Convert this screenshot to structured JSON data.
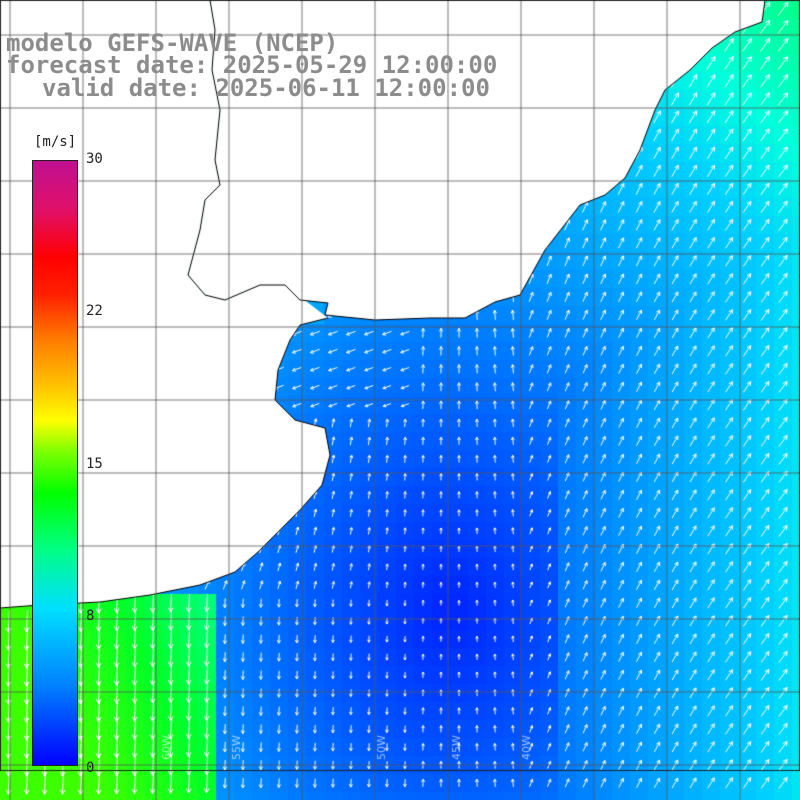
{
  "title": {
    "model": "modelo GEFS-WAVE (NCEP)",
    "forecast": "forecast date: 2025-05-29 12:00:00",
    "valid": "valid date: 2025-06-11 12:00:00"
  },
  "colorbar": {
    "unit": "[m/s]",
    "ticks": [
      "30",
      "22",
      "15",
      "8",
      "0"
    ],
    "range": [
      0,
      30
    ],
    "colors": [
      "#0000ff",
      "#0080ff",
      "#00e0ff",
      "#00ff80",
      "#00ff00",
      "#80ff00",
      "#ffff00",
      "#ffc000",
      "#ff8000",
      "#ff2000",
      "#ff0000",
      "#e0106a",
      "#c01090"
    ]
  },
  "map": {
    "longitude_labels": [
      "60W",
      "55W",
      "50W",
      "45W",
      "40W"
    ],
    "land_color": "#ffffff",
    "grid_color": "#555555",
    "coast_color": "#000000",
    "arrow_color": "#ffffff"
  }
}
